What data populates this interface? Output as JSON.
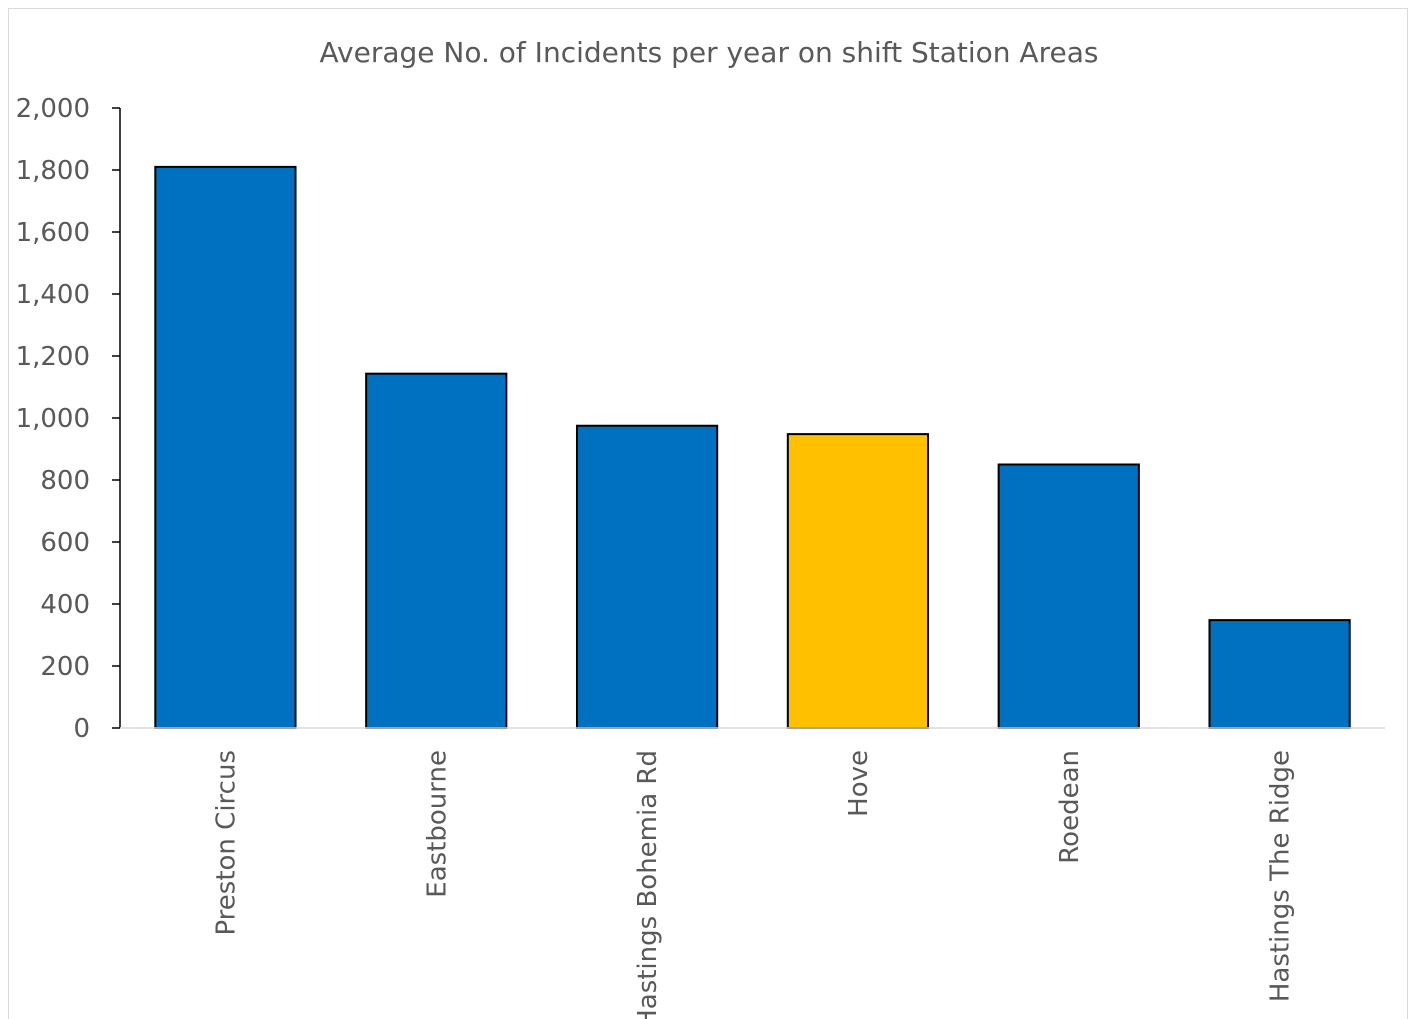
{
  "chart_data": {
    "type": "bar",
    "title": "Average No. of Incidents per year on shift Station Areas",
    "xlabel": "",
    "ylabel": "",
    "categories": [
      "Preston Circus",
      "Eastbourne",
      "Hastings Bohemia Rd",
      "Hove",
      "Roedean",
      "Hastings The Ridge"
    ],
    "values": [
      1810,
      1143,
      975,
      948,
      850,
      348
    ],
    "highlight_index": 3,
    "ylim": [
      0,
      2000
    ],
    "yticks": [
      0,
      200,
      400,
      600,
      800,
      1000,
      1200,
      1400,
      1600,
      1800,
      2000
    ],
    "ytick_labels": [
      "0",
      "200",
      "400",
      "600",
      "800",
      "1,000",
      "1,200",
      "1,400",
      "1,600",
      "1,800",
      "2,000"
    ],
    "grid": false,
    "legend": "none",
    "colors": {
      "bar": "#0070c0",
      "highlight": "#ffc000",
      "bar_outline": "#000000",
      "axis": "#000000",
      "text": "#595959",
      "frame": "#d9d9d9"
    }
  }
}
